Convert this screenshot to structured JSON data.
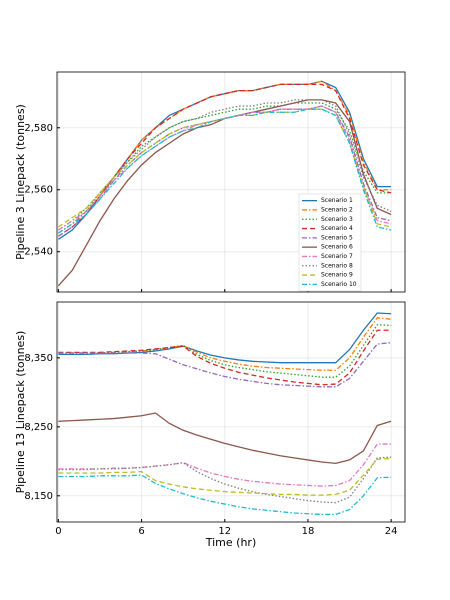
{
  "chart_data": [
    {
      "type": "line",
      "ylabel": "Pipeline 3 Linepack (tonnes)",
      "x": [
        0,
        1,
        2,
        3,
        4,
        5,
        6,
        7,
        8,
        9,
        10,
        11,
        12,
        13,
        14,
        15,
        16,
        17,
        18,
        19,
        20,
        21,
        22,
        23,
        24
      ],
      "xlim": [
        -0.1,
        25
      ],
      "xticks": [
        0,
        6,
        12,
        18,
        24
      ],
      "ylim": [
        2527,
        2598
      ],
      "yticks": [
        {
          "value": 2540,
          "label": "2,540"
        },
        {
          "value": 2560,
          "label": "2,560"
        },
        {
          "value": 2580,
          "label": "2,580"
        }
      ],
      "grid": true,
      "legend": "lower right",
      "series": [
        {
          "name": "Scenario 1",
          "color": "#1f77b4",
          "style": "solid",
          "values": [
            2544,
            2547,
            2552,
            2558,
            2564,
            2570,
            2576,
            2580,
            2584,
            2586,
            2588,
            2590,
            2591,
            2592,
            2592,
            2593,
            2594,
            2594,
            2594,
            2595,
            2593,
            2585,
            2570,
            2561,
            2561
          ]
        },
        {
          "name": "Scenario 2",
          "color": "#ff7f0e",
          "style": "dashdot",
          "values": [
            2546,
            2549,
            2553,
            2558,
            2564,
            2570,
            2576,
            2580,
            2583,
            2586,
            2588,
            2590,
            2591,
            2592,
            2592,
            2593,
            2594,
            2594,
            2594,
            2595,
            2592,
            2584,
            2569,
            2560,
            2560
          ]
        },
        {
          "name": "Scenario 3",
          "color": "#2ca02c",
          "style": "dot",
          "values": [
            2547,
            2550,
            2554,
            2559,
            2564,
            2569,
            2574,
            2577,
            2580,
            2582,
            2583,
            2584,
            2585,
            2586,
            2586,
            2587,
            2587,
            2588,
            2588,
            2588,
            2586,
            2579,
            2566,
            2559,
            2559
          ]
        },
        {
          "name": "Scenario 4",
          "color": "#d62728",
          "style": "dash",
          "values": [
            2545,
            2548,
            2552,
            2558,
            2564,
            2570,
            2575,
            2580,
            2583,
            2586,
            2588,
            2590,
            2591,
            2592,
            2592,
            2593,
            2594,
            2594,
            2594,
            2594,
            2592,
            2583,
            2568,
            2560,
            2559
          ]
        },
        {
          "name": "Scenario 5",
          "color": "#9467bd",
          "style": "dashdot",
          "values": [
            2545,
            2548,
            2552,
            2557,
            2563,
            2568,
            2572,
            2575,
            2578,
            2580,
            2581,
            2582,
            2583,
            2584,
            2585,
            2585,
            2586,
            2586,
            2586,
            2587,
            2585,
            2577,
            2562,
            2551,
            2550
          ]
        },
        {
          "name": "Scenario 6",
          "color": "#8c564b",
          "style": "solid",
          "values": [
            2529,
            2534,
            2542,
            2550,
            2557,
            2563,
            2568,
            2572,
            2575,
            2578,
            2580,
            2581,
            2583,
            2584,
            2585,
            2586,
            2587,
            2588,
            2589,
            2589,
            2588,
            2582,
            2565,
            2554,
            2552
          ]
        },
        {
          "name": "Scenario 7",
          "color": "#e377c2",
          "style": "dashdot",
          "values": [
            2547,
            2550,
            2553,
            2558,
            2563,
            2567,
            2571,
            2574,
            2577,
            2579,
            2581,
            2582,
            2583,
            2584,
            2585,
            2585,
            2586,
            2586,
            2586,
            2587,
            2585,
            2576,
            2561,
            2550,
            2549
          ]
        },
        {
          "name": "Scenario 8",
          "color": "#7f7f7f",
          "style": "dot",
          "values": [
            2546,
            2549,
            2553,
            2559,
            2564,
            2569,
            2573,
            2577,
            2580,
            2582,
            2583,
            2585,
            2586,
            2587,
            2587,
            2588,
            2588,
            2589,
            2589,
            2589,
            2587,
            2578,
            2564,
            2555,
            2553
          ]
        },
        {
          "name": "Scenario 9",
          "color": "#bcbd22",
          "style": "dash",
          "values": [
            2548,
            2551,
            2554,
            2559,
            2564,
            2568,
            2572,
            2575,
            2578,
            2580,
            2581,
            2582,
            2583,
            2584,
            2584,
            2585,
            2585,
            2585,
            2586,
            2586,
            2584,
            2575,
            2561,
            2549,
            2548
          ]
        },
        {
          "name": "Scenario 10",
          "color": "#17becf",
          "style": "dashdot",
          "values": [
            2546,
            2549,
            2552,
            2557,
            2562,
            2567,
            2571,
            2574,
            2577,
            2579,
            2580,
            2582,
            2583,
            2584,
            2584,
            2585,
            2585,
            2585,
            2586,
            2586,
            2584,
            2575,
            2560,
            2548,
            2547
          ]
        }
      ]
    },
    {
      "type": "line",
      "ylabel": "Pipeline 13 Linepack (tonnes)",
      "xlabel": "Time (hr)",
      "x": [
        0,
        1,
        2,
        3,
        4,
        5,
        6,
        7,
        8,
        9,
        10,
        11,
        12,
        13,
        14,
        15,
        16,
        17,
        18,
        19,
        20,
        21,
        22,
        23,
        24
      ],
      "xlim": [
        -0.1,
        25
      ],
      "xticks": [
        0,
        6,
        12,
        18,
        24
      ],
      "ylim": [
        8112,
        8431
      ],
      "yticks": [
        {
          "value": 8150,
          "label": "8,150"
        },
        {
          "value": 8250,
          "label": "8,250"
        },
        {
          "value": 8350,
          "label": "8,350"
        }
      ],
      "grid": true,
      "series": [
        {
          "color": "#1f77b4",
          "style": "solid",
          "values": [
            8355,
            8355,
            8355,
            8356,
            8356,
            8357,
            8358,
            8360,
            8363,
            8367,
            8360,
            8354,
            8350,
            8347,
            8345,
            8344,
            8343,
            8343,
            8343,
            8343,
            8343,
            8362,
            8390,
            8415,
            8414
          ]
        },
        {
          "color": "#ff7f0e",
          "style": "dashdot",
          "values": [
            8357,
            8357,
            8357,
            8357,
            8358,
            8359,
            8360,
            8362,
            8365,
            8368,
            8358,
            8350,
            8345,
            8341,
            8338,
            8336,
            8335,
            8334,
            8333,
            8332,
            8332,
            8350,
            8380,
            8408,
            8406
          ]
        },
        {
          "color": "#2ca02c",
          "style": "dot",
          "values": [
            8357,
            8357,
            8357,
            8357,
            8358,
            8359,
            8360,
            8362,
            8365,
            8368,
            8355,
            8346,
            8340,
            8336,
            8333,
            8330,
            8328,
            8326,
            8324,
            8322,
            8322,
            8338,
            8368,
            8398,
            8397
          ]
        },
        {
          "color": "#d62728",
          "style": "dash",
          "values": [
            8358,
            8358,
            8358,
            8358,
            8359,
            8360,
            8361,
            8363,
            8365,
            8367,
            8352,
            8342,
            8335,
            8329,
            8325,
            8321,
            8318,
            8315,
            8313,
            8311,
            8312,
            8328,
            8360,
            8390,
            8390
          ]
        },
        {
          "color": "#9467bd",
          "style": "dashdot",
          "values": [
            8357,
            8357,
            8357,
            8357,
            8357,
            8357,
            8357,
            8356,
            8348,
            8340,
            8334,
            8328,
            8323,
            8319,
            8316,
            8313,
            8311,
            8310,
            8309,
            8308,
            8308,
            8320,
            8345,
            8370,
            8372
          ]
        },
        {
          "color": "#8c564b",
          "style": "solid",
          "values": [
            8258,
            8259,
            8260,
            8261,
            8262,
            8264,
            8266,
            8270,
            8255,
            8245,
            8238,
            8232,
            8226,
            8221,
            8216,
            8212,
            8208,
            8205,
            8202,
            8199,
            8197,
            8202,
            8215,
            8252,
            8258
          ]
        },
        {
          "color": "#e377c2",
          "style": "dashdot",
          "values": [
            8189,
            8189,
            8189,
            8189,
            8190,
            8190,
            8191,
            8193,
            8195,
            8198,
            8190,
            8183,
            8178,
            8174,
            8171,
            8169,
            8167,
            8166,
            8165,
            8164,
            8165,
            8172,
            8195,
            8225,
            8225
          ]
        },
        {
          "color": "#7f7f7f",
          "style": "dot",
          "values": [
            8188,
            8188,
            8188,
            8189,
            8189,
            8190,
            8191,
            8193,
            8195,
            8198,
            8185,
            8175,
            8167,
            8161,
            8156,
            8152,
            8149,
            8146,
            8143,
            8141,
            8140,
            8148,
            8175,
            8205,
            8206
          ]
        },
        {
          "color": "#bcbd22",
          "style": "dash",
          "values": [
            8183,
            8183,
            8183,
            8183,
            8184,
            8184,
            8185,
            8172,
            8167,
            8163,
            8160,
            8158,
            8156,
            8155,
            8154,
            8153,
            8152,
            8152,
            8151,
            8151,
            8152,
            8158,
            8180,
            8203,
            8204
          ]
        },
        {
          "color": "#17becf",
          "style": "dashdot",
          "values": [
            8178,
            8178,
            8178,
            8179,
            8179,
            8179,
            8180,
            8168,
            8160,
            8153,
            8147,
            8142,
            8138,
            8134,
            8131,
            8129,
            8127,
            8125,
            8124,
            8123,
            8123,
            8130,
            8150,
            8176,
            8177
          ]
        }
      ]
    }
  ]
}
